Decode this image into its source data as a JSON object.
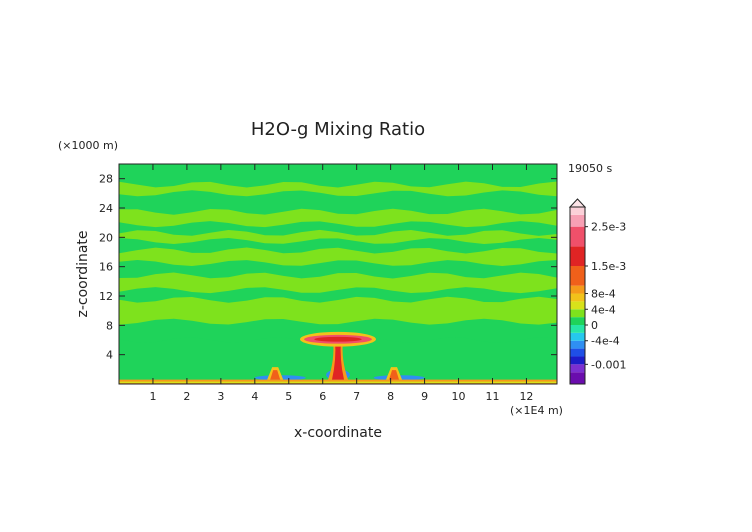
{
  "chart_data": {
    "type": "heatmap",
    "title": "H2O-g Mixing Ratio",
    "xlabel": "x-coordinate",
    "ylabel": "z-coordinate",
    "x_unit": "(×1E4 m)",
    "y_unit": "(×1000 m)",
    "time_label": "19050 s",
    "xlim": [
      0,
      12.9
    ],
    "ylim": [
      0,
      30
    ],
    "x_ticks": [
      1,
      2,
      3,
      4,
      5,
      6,
      7,
      8,
      9,
      10,
      11,
      12
    ],
    "y_ticks": [
      4,
      8,
      12,
      16,
      20,
      24,
      28
    ],
    "colorbar": {
      "range": [
        -0.0015,
        0.003
      ],
      "labels": [
        {
          "value": 0.0025,
          "text": "2.5e-3"
        },
        {
          "value": 0.0015,
          "text": "1.5e-3"
        },
        {
          "value": 0.0008,
          "text": "8e-4"
        },
        {
          "value": 0.0004,
          "text": "4e-4"
        },
        {
          "value": 0.0,
          "text": "0"
        },
        {
          "value": -0.0004,
          "text": "-4e-4"
        },
        {
          "value": -0.001,
          "text": "-0.001"
        }
      ],
      "colors": [
        "#6a0dad",
        "#7b2fd0",
        "#1c1cc8",
        "#1f4fe6",
        "#2f8ff2",
        "#26c8ee",
        "#27e6a6",
        "#1fd35a",
        "#7ee21d",
        "#d8e21a",
        "#f2c21a",
        "#f59a1a",
        "#f0601a",
        "#e02424",
        "#f0506a",
        "#f7a0b4",
        "#fbd0d8"
      ],
      "boundaries": [
        -0.0015,
        -0.0012,
        -0.001,
        -0.0008,
        -0.0006,
        -0.0004,
        -0.0002,
        0.0,
        0.0002,
        0.0004,
        0.0006,
        0.0008,
        0.001,
        0.0015,
        0.002,
        0.0025,
        0.0028,
        0.003
      ]
    },
    "features": {
      "background_value": 0.0,
      "horizontal_bands": [
        {
          "z": [
            8.5,
            11.5
          ],
          "value": 0.00025
        },
        {
          "z": [
            12.8,
            14.8
          ],
          "value": 0.0002
        },
        {
          "z": [
            16.5,
            18.2
          ],
          "value": 0.0002
        },
        {
          "z": [
            19.5,
            20.6
          ],
          "value": 0.0002
        },
        {
          "z": [
            21.8,
            23.5
          ],
          "value": 0.00025
        },
        {
          "z": [
            26.0,
            27.2
          ],
          "value": 0.0002
        },
        {
          "z": [
            0.9,
            6.0
          ],
          "value": 0.00015
        }
      ],
      "surface_layer": {
        "z": [
          0,
          0.6
        ],
        "value": 0.0009
      },
      "anvil": {
        "x_center": 6.45,
        "z_center": 6.1,
        "x_halfwidth": 1.0,
        "z_halfwidth": 0.6,
        "value": 0.002
      },
      "main_column": {
        "x_center": 6.45,
        "z": [
          0.6,
          6.0
        ],
        "value": 0.0018
      },
      "side_cells": [
        {
          "x_center": 4.6,
          "z_top": 2.3,
          "value": 0.0012
        },
        {
          "x_center": 8.1,
          "z_top": 2.3,
          "value": 0.0012
        }
      ],
      "negative_patches": [
        {
          "x": [
            4.0,
            5.5
          ],
          "z": [
            0.5,
            1.2
          ],
          "value": -0.0005
        },
        {
          "x": [
            7.5,
            9.0
          ],
          "z": [
            0.5,
            1.2
          ],
          "value": -0.0005
        },
        {
          "x": [
            6.1,
            6.8
          ],
          "z": [
            0.5,
            2.0
          ],
          "value": -0.0006
        }
      ]
    }
  }
}
